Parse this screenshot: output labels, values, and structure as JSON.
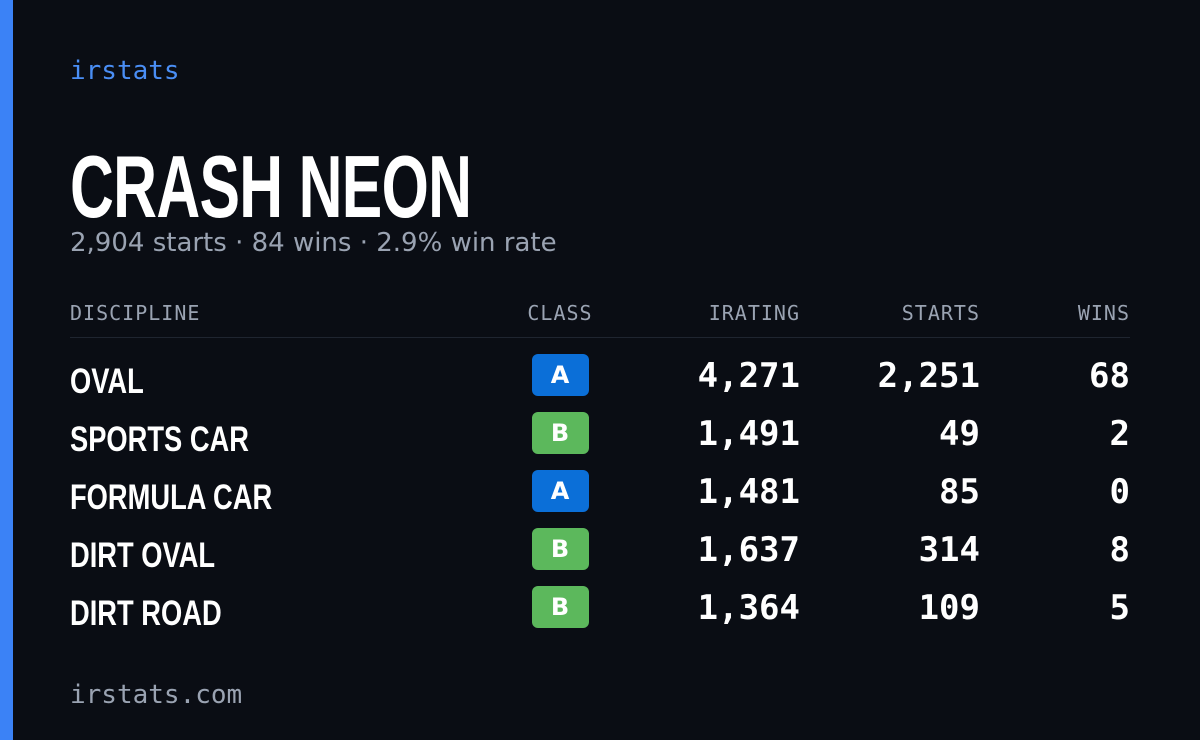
{
  "brand": "irstats",
  "title": "CRASH NEON",
  "subtitle": "2,904 starts · 84 wins · 2.9% win rate",
  "table": {
    "headers": [
      "DISCIPLINE",
      "CLASS",
      "IRATING",
      "STARTS",
      "WINS"
    ],
    "rows": [
      {
        "discipline": "OVAL",
        "class": "A",
        "class_color": "#0b6fd8",
        "irating": "4,271",
        "starts": "2,251",
        "wins": "68"
      },
      {
        "discipline": "SPORTS CAR",
        "class": "B",
        "class_color": "#5cb85c",
        "irating": "1,491",
        "starts": "49",
        "wins": "2"
      },
      {
        "discipline": "FORMULA CAR",
        "class": "A",
        "class_color": "#0b6fd8",
        "irating": "1,481",
        "starts": "85",
        "wins": "0"
      },
      {
        "discipline": "DIRT OVAL",
        "class": "B",
        "class_color": "#5cb85c",
        "irating": "1,637",
        "starts": "314",
        "wins": "8"
      },
      {
        "discipline": "DIRT ROAD",
        "class": "B",
        "class_color": "#5cb85c",
        "irating": "1,364",
        "starts": "109",
        "wins": "5"
      }
    ]
  },
  "footer": "irstats.com"
}
